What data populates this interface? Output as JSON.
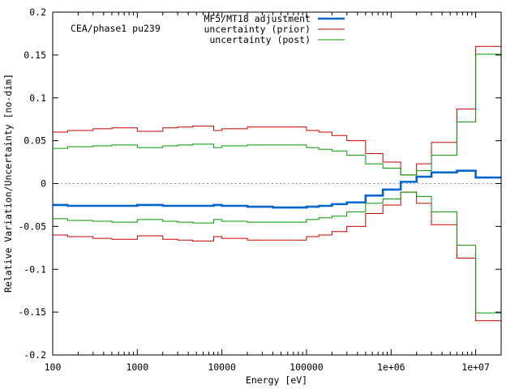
{
  "chart_data": {
    "type": "line",
    "step": true,
    "xscale": "log",
    "xlim": [
      100,
      20000000
    ],
    "ylim": [
      -0.2,
      0.2
    ],
    "xlabel": "Energy [eV]",
    "ylabel": "Relative Variation/Uncertainty [no-dim]",
    "annotation": "CEA/phase1 pu239",
    "legend_position": "top-center",
    "x_ticks": [
      {
        "value": 100,
        "label": "100"
      },
      {
        "value": 1000,
        "label": "1000"
      },
      {
        "value": 10000,
        "label": "10000"
      },
      {
        "value": 100000,
        "label": "100000"
      },
      {
        "value": 1000000,
        "label": "1e+06"
      },
      {
        "value": 10000000,
        "label": "1e+07"
      }
    ],
    "y_ticks": [
      {
        "value": 0.2,
        "label": "0.2"
      },
      {
        "value": 0.15,
        "label": "0.15"
      },
      {
        "value": 0.1,
        "label": "0.1"
      },
      {
        "value": 0.05,
        "label": "0.05"
      },
      {
        "value": 0,
        "label": "0"
      },
      {
        "value": -0.05,
        "label": "-0.05"
      },
      {
        "value": -0.1,
        "label": "-0.1"
      },
      {
        "value": -0.15,
        "label": "-0.15"
      },
      {
        "value": -0.2,
        "label": "-0.2"
      }
    ],
    "zero_line": true,
    "energy_boundaries": [
      100,
      150,
      300,
      500,
      1000,
      2000,
      3000,
      4500,
      8000,
      10000,
      20000,
      40000,
      100000,
      140000,
      200000,
      300000,
      500000,
      800000,
      1300000,
      2000000,
      3000000,
      6000000,
      10000000,
      20000000
    ],
    "series": [
      {
        "name": "MF5/MT18 adjustment",
        "color": "#0066cc",
        "width": 2.6,
        "mirrored": false,
        "values": [
          -0.025,
          -0.026,
          -0.026,
          -0.026,
          -0.025,
          -0.026,
          -0.026,
          -0.026,
          -0.025,
          -0.026,
          -0.027,
          -0.028,
          -0.027,
          -0.026,
          -0.024,
          -0.022,
          -0.014,
          -0.007,
          0.002,
          0.008,
          0.013,
          0.015,
          0.007
        ]
      },
      {
        "name": "uncertainty (prior)",
        "color": "#cc0000",
        "width": 1,
        "mirrored": true,
        "values": [
          0.06,
          0.062,
          0.064,
          0.065,
          0.061,
          0.065,
          0.066,
          0.067,
          0.062,
          0.064,
          0.066,
          0.066,
          0.062,
          0.06,
          0.056,
          0.05,
          0.035,
          0.025,
          0.01,
          0.023,
          0.048,
          0.087,
          0.16
        ]
      },
      {
        "name": "uncertainty (post)",
        "color": "#009900",
        "width": 1,
        "mirrored": true,
        "values": [
          0.041,
          0.043,
          0.044,
          0.045,
          0.042,
          0.044,
          0.045,
          0.046,
          0.042,
          0.044,
          0.045,
          0.045,
          0.042,
          0.04,
          0.038,
          0.033,
          0.023,
          0.018,
          0.01,
          0.015,
          0.033,
          0.072,
          0.151
        ]
      }
    ]
  }
}
